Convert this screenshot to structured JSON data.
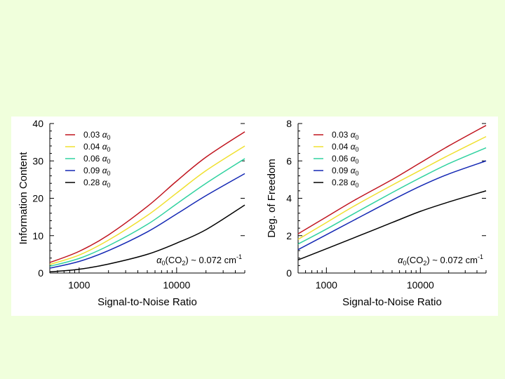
{
  "background_color": "#f0ffdc",
  "chart_data": [
    {
      "type": "line",
      "xlabel": "Signal-to-Noise Ratio",
      "ylabel": "Information Content",
      "xscale": "log",
      "xlim": [
        500,
        50000
      ],
      "ylim": [
        0,
        40
      ],
      "xticks": [
        1000,
        10000
      ],
      "xtick_labels": [
        "1000",
        "10000"
      ],
      "yticks": [
        0,
        10,
        20,
        30,
        40
      ],
      "ytick_labels": [
        "0",
        "10",
        "20",
        "30",
        "40"
      ],
      "legend_position": "top-left",
      "annotation": {
        "prefix": "α",
        "sub0": "0",
        "mid": "(CO",
        "sub2": "2",
        "rest": ") ~ 0.072 cm",
        "sup": "-1"
      },
      "x": [
        500,
        1000,
        2000,
        5000,
        10000,
        20000,
        50000
      ],
      "series": [
        {
          "name": "0.03 α0",
          "coef": "0.03",
          "alpha": "α",
          "sub": "0",
          "color": "#c0141e",
          "values": [
            2.8,
            5.8,
            10.2,
            17.8,
            24.6,
            31.0,
            37.8
          ]
        },
        {
          "name": "0.04 α0",
          "coef": "0.04",
          "alpha": "α",
          "sub": "0",
          "color": "#f0e030",
          "values": [
            2.3,
            4.8,
            8.8,
            15.4,
            21.4,
            27.4,
            34.0
          ]
        },
        {
          "name": "0.06 α0",
          "coef": "0.06",
          "alpha": "α",
          "sub": "0",
          "color": "#30d2a0",
          "values": [
            1.8,
            3.9,
            7.3,
            13.0,
            18.5,
            24.0,
            30.6
          ]
        },
        {
          "name": "0.09 α0",
          "coef": "0.09",
          "alpha": "α",
          "sub": "0",
          "color": "#1428b4",
          "values": [
            1.3,
            3.1,
            6.0,
            11.0,
            15.8,
            20.7,
            26.6
          ]
        },
        {
          "name": "0.28 α0",
          "coef": "0.28",
          "alpha": "α",
          "sub": "0",
          "color": "#000000",
          "values": [
            0.3,
            1.0,
            2.4,
            5.0,
            8.0,
            11.6,
            18.2
          ]
        }
      ]
    },
    {
      "type": "line",
      "xlabel": "Signal-to-Noise Ratio",
      "ylabel": "Deg. of Freedom",
      "xscale": "log",
      "xlim": [
        500,
        50000
      ],
      "ylim": [
        0,
        8
      ],
      "xticks": [
        1000,
        10000
      ],
      "xtick_labels": [
        "1000",
        "10000"
      ],
      "yticks": [
        0,
        2,
        4,
        6,
        8
      ],
      "ytick_labels": [
        "0",
        "2",
        "4",
        "6",
        "8"
      ],
      "legend_position": "top-left",
      "annotation": {
        "prefix": "α",
        "sub0": "0",
        "mid": "(CO",
        "sub2": "2",
        "rest": ") ~ 0.072 cm",
        "sup": "-1"
      },
      "x": [
        500,
        1000,
        2000,
        5000,
        10000,
        20000,
        50000
      ],
      "series": [
        {
          "name": "0.03 α0",
          "coef": "0.03",
          "alpha": "α",
          "sub": "0",
          "color": "#c0141e",
          "values": [
            2.1,
            3.0,
            3.9,
            5.0,
            5.9,
            6.8,
            7.9
          ]
        },
        {
          "name": "0.04 α0",
          "coef": "0.04",
          "alpha": "α",
          "sub": "0",
          "color": "#f0e030",
          "values": [
            1.8,
            2.7,
            3.6,
            4.7,
            5.5,
            6.3,
            7.3
          ]
        },
        {
          "name": "0.06 α0",
          "coef": "0.06",
          "alpha": "α",
          "sub": "0",
          "color": "#30d2a0",
          "values": [
            1.55,
            2.35,
            3.2,
            4.3,
            5.1,
            5.85,
            6.7
          ]
        },
        {
          "name": "0.09 α0",
          "coef": "0.09",
          "alpha": "α",
          "sub": "0",
          "color": "#1428b4",
          "values": [
            1.25,
            2.05,
            2.85,
            3.9,
            4.65,
            5.3,
            6.0
          ]
        },
        {
          "name": "0.28 α0",
          "coef": "0.28",
          "alpha": "α",
          "sub": "0",
          "color": "#000000",
          "values": [
            0.7,
            1.3,
            1.9,
            2.7,
            3.3,
            3.8,
            4.4
          ]
        }
      ]
    }
  ]
}
